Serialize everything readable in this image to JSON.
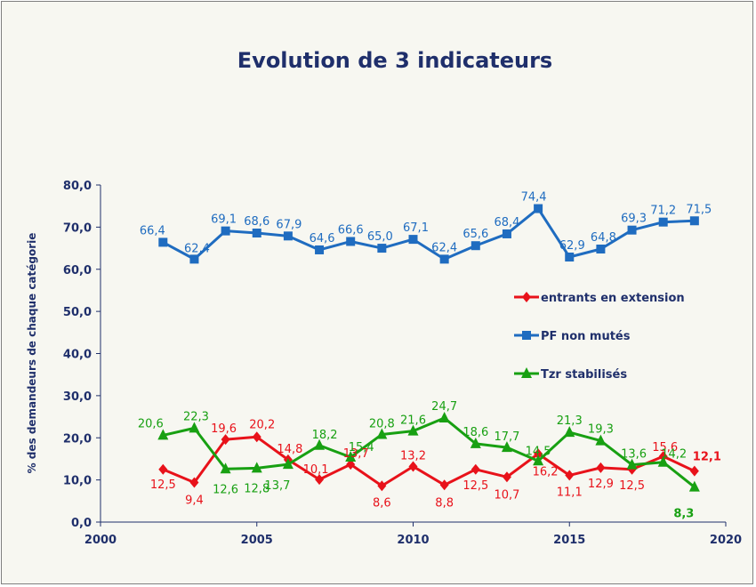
{
  "chart_data": {
    "type": "line",
    "title": "Evolution de 3 indicateurs",
    "xlabel": "",
    "ylabel": "% des demandeurs de chaque catégorie",
    "xlim": [
      2000,
      2020
    ],
    "ylim": [
      0,
      80
    ],
    "x_ticks": [
      "2000",
      "2005",
      "2010",
      "2015",
      "2020"
    ],
    "y_ticks": [
      "0,0",
      "10,0",
      "20,0",
      "30,0",
      "40,0",
      "50,0",
      "60,0",
      "70,0",
      "80,0"
    ],
    "grid": false,
    "legend_position": "right",
    "x": [
      2002,
      2003,
      2004,
      2005,
      2006,
      2007,
      2008,
      2009,
      2010,
      2011,
      2012,
      2013,
      2014,
      2015,
      2016,
      2017,
      2018,
      2019
    ],
    "series": [
      {
        "name": "entrants en extension",
        "color": "#e8121a",
        "marker": "diamond",
        "values": [
          12.5,
          9.4,
          19.6,
          20.2,
          14.8,
          10.1,
          13.7,
          8.6,
          13.2,
          8.8,
          12.5,
          10.7,
          16.2,
          11.1,
          12.9,
          12.5,
          15.6,
          12.1
        ],
        "labels": [
          "12,5",
          "9,4",
          "19,6",
          "20,2",
          "14,8",
          "10,1",
          "13,7",
          "8,6",
          "13,2",
          "8,8",
          "12,5",
          "10,7",
          "16,2",
          "11,1",
          "12,9",
          "12,5",
          "15,6",
          "12,1"
        ]
      },
      {
        "name": "PF non mutés",
        "color": "#1f6cc0",
        "marker": "square",
        "values": [
          66.4,
          62.4,
          69.1,
          68.6,
          67.9,
          64.6,
          66.6,
          65.0,
          67.1,
          62.4,
          65.6,
          68.4,
          74.4,
          62.9,
          64.8,
          69.3,
          71.2,
          71.5
        ],
        "labels": [
          "66,4",
          "62,4",
          "69,1",
          "68,6",
          "67,9",
          "64,6",
          "66,6",
          "65,0",
          "67,1",
          "62,4",
          "65,6",
          "68,4",
          "74,4",
          "62,9",
          "64,8",
          "69,3",
          "71,2",
          "71,5"
        ]
      },
      {
        "name": "Tzr stabilisés",
        "color": "#18a012",
        "marker": "triangle",
        "values": [
          20.6,
          22.3,
          12.6,
          12.8,
          13.7,
          18.2,
          15.4,
          20.8,
          21.6,
          24.7,
          18.6,
          17.7,
          14.5,
          21.3,
          19.3,
          13.6,
          14.2,
          8.3
        ],
        "labels": [
          "20,6",
          "22,3",
          "12,6",
          "12,8",
          "13,7",
          "18,2",
          "15,4",
          "20,8",
          "21,6",
          "24,7",
          "18,6",
          "17,7",
          "14,5",
          "21,3",
          "19,3",
          "13,6",
          "14,2",
          "8,3"
        ]
      }
    ]
  }
}
